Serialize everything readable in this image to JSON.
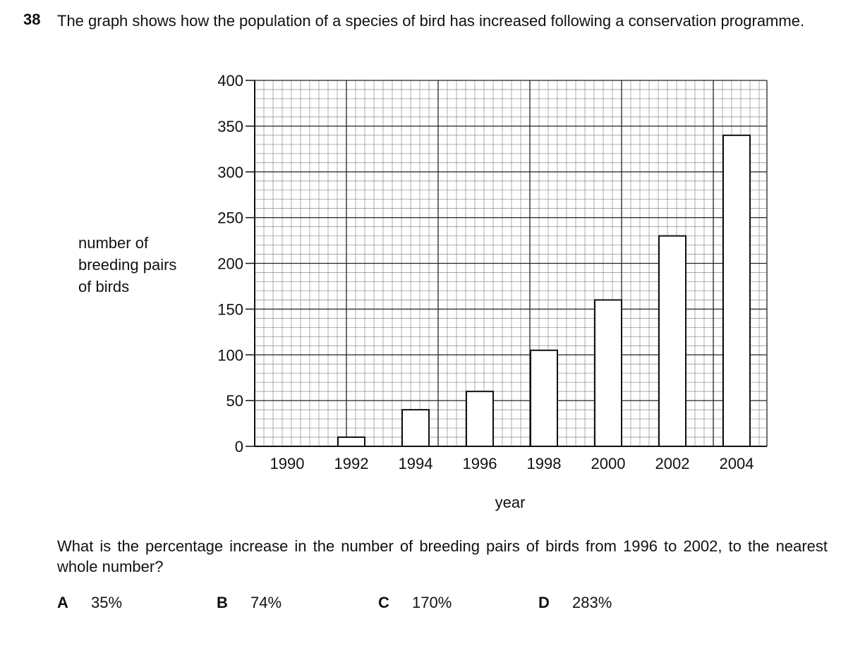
{
  "question": {
    "number": "38",
    "stem": "The graph shows how the population of a species of bird has increased following a conservation programme.",
    "prompt": "What is the percentage increase in the number of breeding pairs of birds from 1996 to 2002, to the nearest whole number?",
    "options": [
      {
        "letter": "A",
        "value": "35%"
      },
      {
        "letter": "B",
        "value": "74%"
      },
      {
        "letter": "C",
        "value": "170%"
      },
      {
        "letter": "D",
        "value": "283%"
      }
    ]
  },
  "chart_data": {
    "type": "bar",
    "title": "",
    "ylabel_lines": [
      "number of",
      "breeding pairs",
      "of birds"
    ],
    "xlabel": "year",
    "categories": [
      "1990",
      "1992",
      "1994",
      "1996",
      "1998",
      "2000",
      "2002",
      "2004"
    ],
    "values": [
      0,
      10,
      40,
      60,
      105,
      160,
      230,
      340
    ],
    "ylim": [
      0,
      400
    ],
    "yticks": [
      0,
      50,
      100,
      150,
      200,
      250,
      300,
      350,
      400
    ],
    "grid": true
  }
}
